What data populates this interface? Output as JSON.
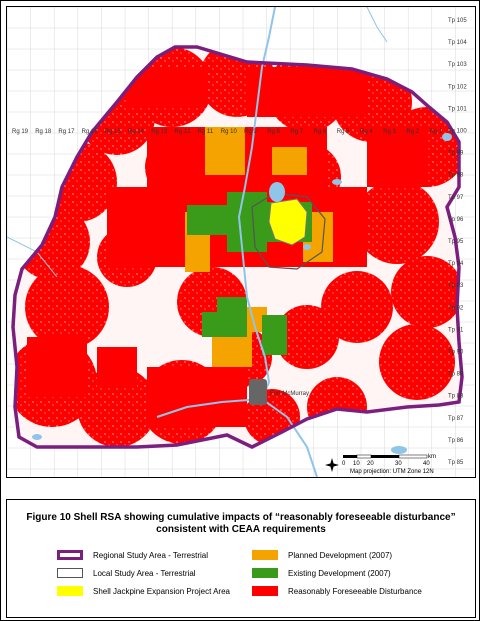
{
  "map": {
    "ranges": [
      "Rg 19",
      "Rg 18",
      "Rg 17",
      "Rg 16",
      "Rg 15",
      "Rg 14",
      "Rg 13",
      "Rg 12",
      "Rg 11",
      "Rg 10",
      "Rg 9",
      "Rg 8",
      "Rg 7",
      "Rg 6",
      "Rg 5",
      "Rg 4",
      "Rg 3",
      "Rg 2",
      "Rg 1"
    ],
    "townships": [
      "Tp 105",
      "Tp 104",
      "Tp 103",
      "Tp 102",
      "Tp 101",
      "Tp 100",
      "Tp 99",
      "Tp 98",
      "Tp 97",
      "Tp 96",
      "Tp 95",
      "Tp 94",
      "Tp 93",
      "Tp 92",
      "Tp 91",
      "Tp 90",
      "Tp 89",
      "Tp 88",
      "Tp 87",
      "Tp 86",
      "Tp 85"
    ],
    "city_label": "Fort McMurray",
    "scale_unit": "km",
    "scale_ticks": [
      "0",
      "10",
      "20",
      "30",
      "40"
    ],
    "projection": "Map projection: UTM Zone 12N",
    "north_arrow": "compass-icon"
  },
  "legend": {
    "title_line1": "Figure 10 Shell RSA showing cumulative impacts of “reasonably foreseeable disturbance”",
    "title_line2": "consistent with CEAA requirements",
    "items": [
      {
        "label": "Regional Study Area - Terrestrial",
        "color": "#7b1f7f",
        "kind": "outline-thick"
      },
      {
        "label": "Local Study Area - Terrestrial",
        "color": "#555555",
        "kind": "outline-thin"
      },
      {
        "label": "Shell Jackpine Expansion Project Area",
        "color": "#ffff00",
        "kind": "fill"
      },
      {
        "label": "Planned Development (2007)",
        "color": "#f5a300",
        "kind": "fill"
      },
      {
        "label": "Existing Development (2007)",
        "color": "#3a9a1a",
        "kind": "fill"
      },
      {
        "label": "Reasonably Foreseeable Disturbance",
        "color": "#ff0000",
        "kind": "fill"
      }
    ]
  }
}
